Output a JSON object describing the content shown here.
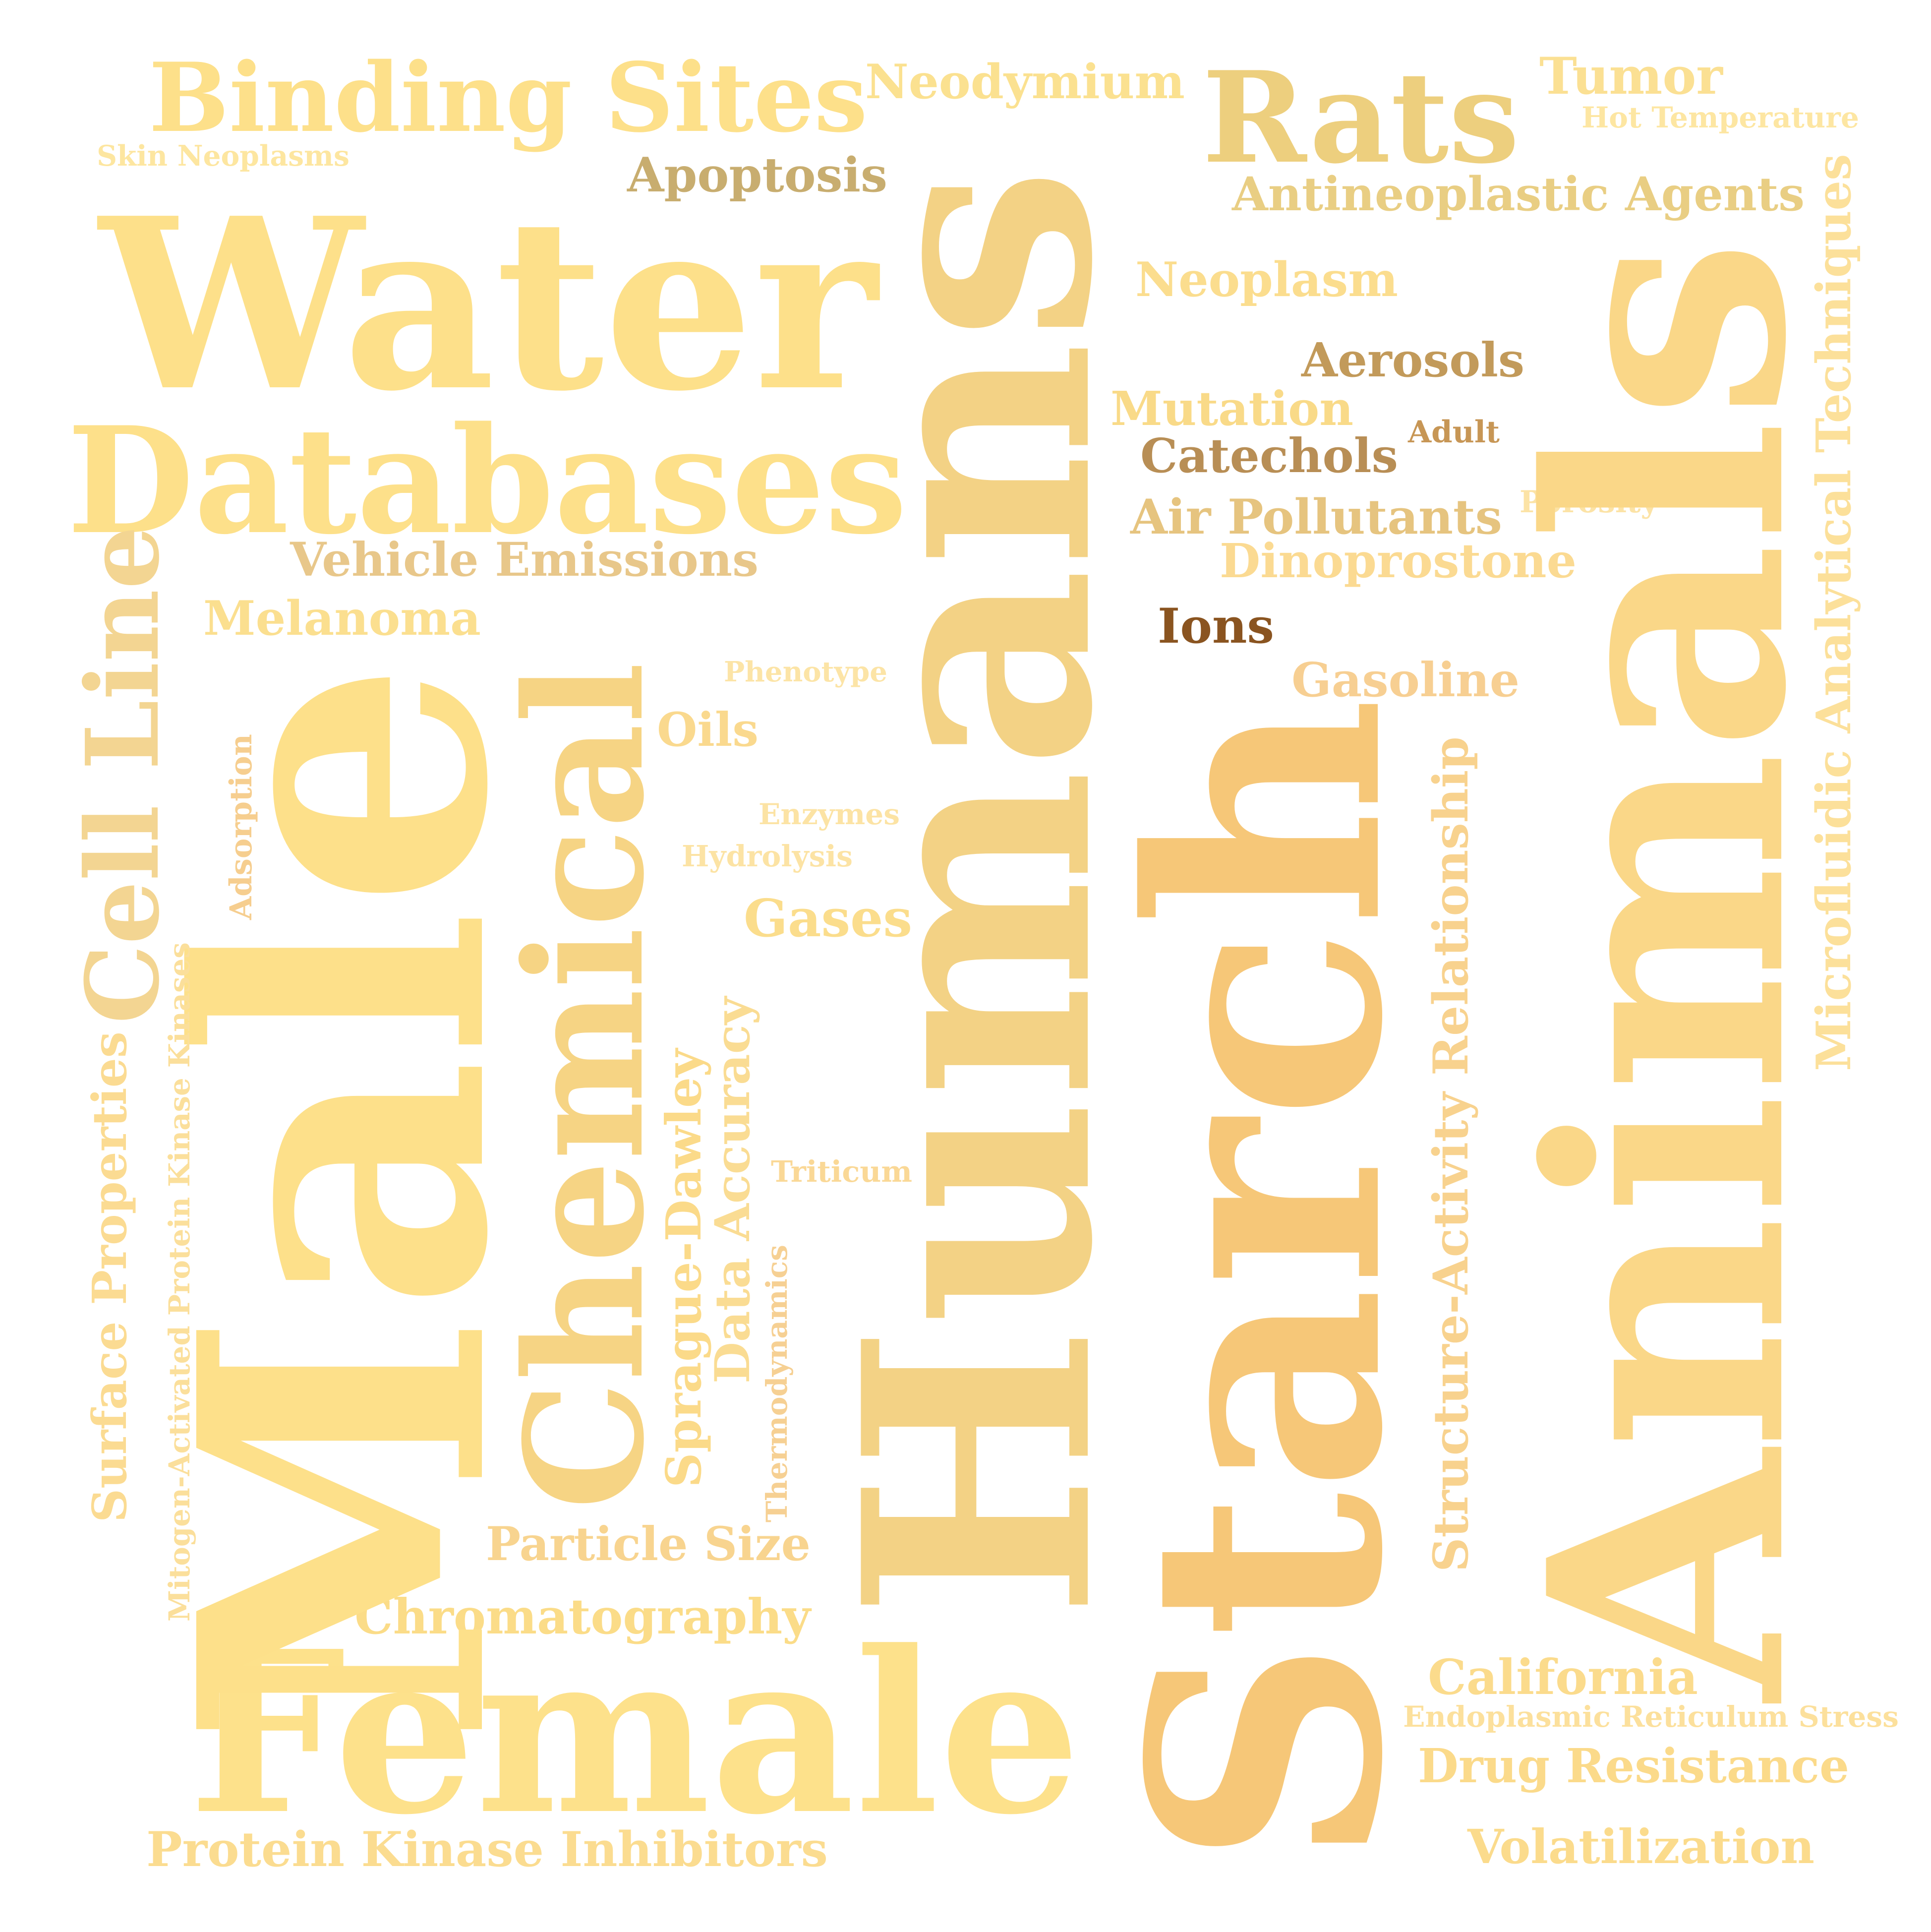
{
  "words": [
    {
      "text": "Water",
      "color": "#FDE08A",
      "vertical": false
    },
    {
      "text": "Binding Sites",
      "color": "#FDE08A",
      "vertical": false
    },
    {
      "text": "Neodymium",
      "color": "#FBE190",
      "vertical": false
    },
    {
      "text": "Rats",
      "color": "#EDCF7E",
      "vertical": false
    },
    {
      "text": "Tumor",
      "color": "#FBE093",
      "vertical": false
    },
    {
      "text": "Hot Temperature",
      "color": "#FDE6A2",
      "vertical": false
    },
    {
      "text": "Skin Neoplasms",
      "color": "#FDE6A0",
      "vertical": false
    },
    {
      "text": "Apoptosis",
      "color": "#C8AD6F",
      "vertical": false
    },
    {
      "text": "Antineoplastic Agents",
      "color": "#E9CE83",
      "vertical": false
    },
    {
      "text": "Neoplasm",
      "color": "#FBDD8E",
      "vertical": false
    },
    {
      "text": "Databases",
      "color": "#FDE08A",
      "vertical": false
    },
    {
      "text": "Aerosols",
      "color": "#C29A5A",
      "vertical": false
    },
    {
      "text": "Mutation",
      "color": "#F9DA88",
      "vertical": false
    },
    {
      "text": "Catechols",
      "color": "#B88E55",
      "vertical": false
    },
    {
      "text": "Adult",
      "color": "#C79655",
      "vertical": false
    },
    {
      "text": "Air Pollutants",
      "color": "#E6C47F",
      "vertical": false
    },
    {
      "text": "Porosity",
      "color": "#FCE3A6",
      "vertical": false
    },
    {
      "text": "Vehicle Emissions",
      "color": "#E8C78A",
      "vertical": false
    },
    {
      "text": "Dinoprostone",
      "color": "#FBDA92",
      "vertical": false
    },
    {
      "text": "Melanoma",
      "color": "#FBDF8F",
      "vertical": false
    },
    {
      "text": "Ions",
      "color": "#8A5420",
      "vertical": false
    },
    {
      "text": "Gasoline",
      "color": "#F7CF92",
      "vertical": false
    },
    {
      "text": "Phenotype",
      "color": "#FCE4A6",
      "vertical": false
    },
    {
      "text": "Oils",
      "color": "#FAD98E",
      "vertical": false
    },
    {
      "text": "Enzymes",
      "color": "#FCE3A4",
      "vertical": false
    },
    {
      "text": "Hydrolysis",
      "color": "#FCE3A4",
      "vertical": false
    },
    {
      "text": "Gases",
      "color": "#FBDD8C",
      "vertical": false
    },
    {
      "text": "Triticum",
      "color": "#FAD896",
      "vertical": false
    },
    {
      "text": "Particle Size",
      "color": "#F8D48F",
      "vertical": false
    },
    {
      "text": "Chromatography",
      "color": "#FBDC88",
      "vertical": false
    },
    {
      "text": "Female",
      "color": "#FDE18B",
      "vertical": false
    },
    {
      "text": "Protein Kinase Inhibitors",
      "color": "#FBDC90",
      "vertical": false
    },
    {
      "text": "California",
      "color": "#FBDB8C",
      "vertical": false
    },
    {
      "text": "Endoplasmic Reticulum Stress",
      "color": "#FCE09C",
      "vertical": false
    },
    {
      "text": "Drug Resistance",
      "color": "#FBDA8A",
      "vertical": false
    },
    {
      "text": "Volatilization",
      "color": "#FBDB8C",
      "vertical": false
    },
    {
      "text": "Humans",
      "color": "#F3D285",
      "vertical": true
    },
    {
      "text": "Starch",
      "color": "#F6C778",
      "vertical": true
    },
    {
      "text": "Animals",
      "color": "#FAD788",
      "vertical": true
    },
    {
      "text": "Male",
      "color": "#FDE08A",
      "vertical": true
    },
    {
      "text": "Chemical",
      "color": "#F6D484",
      "vertical": true
    },
    {
      "text": "Cell Line",
      "color": "#F3D592",
      "vertical": true
    },
    {
      "text": "Surface Properties",
      "color": "#FBDB92",
      "vertical": true
    },
    {
      "text": "Mitogen-Activated Protein Kinase Kinases",
      "color": "#FBDF9B",
      "vertical": true
    },
    {
      "text": "Adsorption",
      "color": "#F6CE8F",
      "vertical": true
    },
    {
      "text": "Sprague-Dawley",
      "color": "#FBDA89",
      "vertical": true
    },
    {
      "text": "Data Accuracy",
      "color": "#FADC93",
      "vertical": true
    },
    {
      "text": "Thermodynamics",
      "color": "#F6D093",
      "vertical": true
    },
    {
      "text": "Structure-Activity Relationship",
      "color": "#F8D28E",
      "vertical": true
    },
    {
      "text": "Microfluidic Analytical Techniques",
      "color": "#FCE09A",
      "vertical": true
    }
  ]
}
